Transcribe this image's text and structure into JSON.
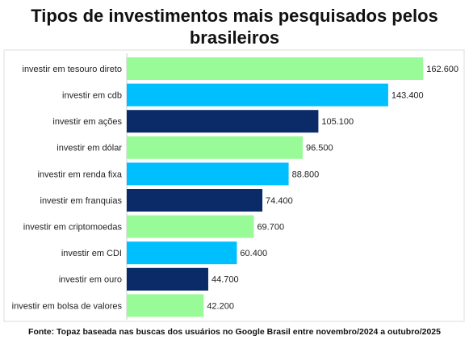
{
  "chart_data": {
    "type": "bar",
    "orientation": "horizontal",
    "title": "Tipos de investimentos mais pesquisados pelos brasileiros",
    "source": "Fonte: Topaz baseada nas buscas dos usuários no Google Brasil entre novembro/2024 a outubro/2025",
    "categories": [
      "investir em tesouro direto",
      "investir em cdb",
      "investir em ações",
      "investir em dólar",
      "investir em renda fixa",
      "investir em franquias",
      "investir em criptomoedas",
      "investir em CDI",
      "investir em ouro",
      "investir em bolsa de valores"
    ],
    "values": [
      162600,
      143400,
      105100,
      96500,
      88800,
      74400,
      69700,
      60400,
      44700,
      42200
    ],
    "value_labels": [
      "162.600",
      "143.400",
      "105.100",
      "96.500",
      "88.800",
      "74.400",
      "69.700",
      "60.400",
      "44.700",
      "42.200"
    ],
    "colors": [
      "#98fb98",
      "#00bfff",
      "#0b2a68",
      "#98fb98",
      "#00bfff",
      "#0b2a68",
      "#98fb98",
      "#00bfff",
      "#0b2a68",
      "#98fb98"
    ],
    "xlim": [
      0,
      170000
    ]
  }
}
